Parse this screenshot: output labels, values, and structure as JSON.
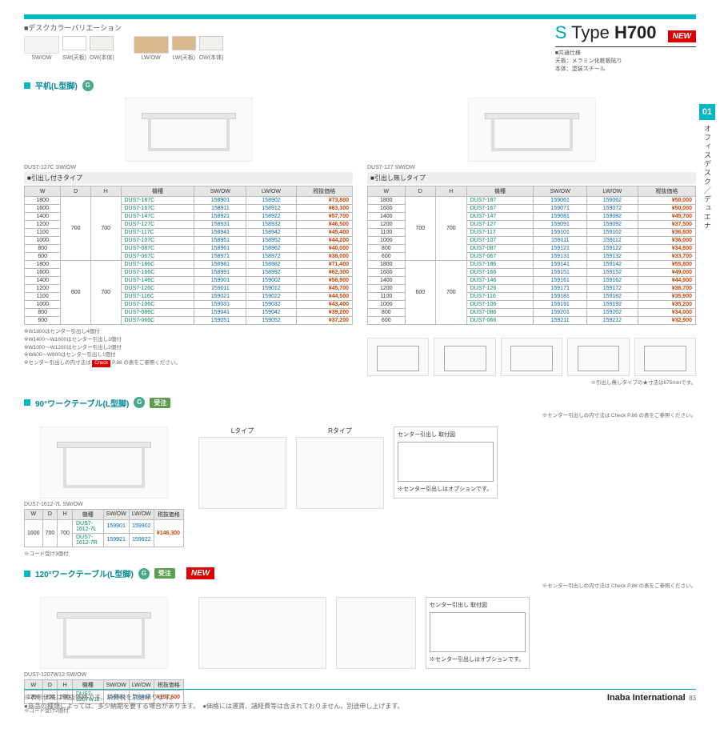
{
  "title": {
    "prefix": "S",
    "type": "Type",
    "model": "H700",
    "new": "NEW"
  },
  "colorvar_title": "■デスクカラーバリエーション",
  "swatch_labels": [
    "SW/OW",
    "SW(天板)",
    "OW(本体)",
    "LW/OW",
    "LW(天板)",
    "OW(本体)"
  ],
  "spec_common": {
    "head": "■共通仕様",
    "l1": "天板：メラミン化粧板貼り",
    "l2": "本体：塗装スチール"
  },
  "sidetab": {
    "num": "01",
    "text": "オフィスデスク／デュエナ"
  },
  "sec1": {
    "title": "平机(L型脚)"
  },
  "t1": {
    "model": "DUS7-127C SW/OW",
    "subhead": "■引出し付きタイプ",
    "headers": [
      "W",
      "D",
      "H",
      "機種",
      "SW/OW",
      "LW/OW",
      "税抜価格"
    ],
    "d": "700",
    "h": "700",
    "rows": [
      [
        "1800",
        "DUS7-187C",
        "158901",
        "158902",
        "¥73,800"
      ],
      [
        "1600",
        "DUS7-167C",
        "158911",
        "158912",
        "¥63,300"
      ],
      [
        "1400",
        "DUS7-147C",
        "158921",
        "158922",
        "¥57,700"
      ],
      [
        "1200",
        "DUS7-127C",
        "158931",
        "158932",
        "¥46,500"
      ],
      [
        "1100",
        "DUS7-117C",
        "158941",
        "158942",
        "¥45,400"
      ],
      [
        "1000",
        "DUS7-107C",
        "158951",
        "158952",
        "¥44,200"
      ],
      [
        "800",
        "DUS7-087C",
        "158961",
        "158962",
        "¥40,000"
      ],
      [
        "600",
        "DUS7-067C",
        "158971",
        "158972",
        "¥38,000"
      ]
    ],
    "d2": "600",
    "rows2": [
      [
        "1800",
        "DUS7-186C",
        "158981",
        "158982",
        "¥71,400"
      ],
      [
        "1600",
        "DUS7-166C",
        "158991",
        "158992",
        "¥62,300"
      ],
      [
        "1400",
        "DUS7-146C",
        "159001",
        "159002",
        "¥56,900"
      ],
      [
        "1200",
        "DUS7-126C",
        "159011",
        "159012",
        "¥45,700"
      ],
      [
        "1100",
        "DUS7-116C",
        "159021",
        "159022",
        "¥44,500"
      ],
      [
        "1000",
        "DUS7-106C",
        "159031",
        "159032",
        "¥43,400"
      ],
      [
        "800",
        "DUS7-086C",
        "159041",
        "159042",
        "¥39,200"
      ],
      [
        "600",
        "DUS7-066C",
        "159051",
        "159052",
        "¥37,200"
      ]
    ]
  },
  "t2": {
    "model": "DUS7-127 SW/OW",
    "subhead": "■引出し無しタイプ",
    "d": "700",
    "h": "700",
    "rows": [
      [
        "1800",
        "DUS7-187",
        "159061",
        "159062",
        "¥58,000"
      ],
      [
        "1600",
        "DUS7-167",
        "159071",
        "159072",
        "¥50,000"
      ],
      [
        "1400",
        "DUS7-147",
        "159081",
        "159082",
        "¥45,700"
      ],
      [
        "1200",
        "DUS7-127",
        "159091",
        "159092",
        "¥37,500"
      ],
      [
        "1100",
        "DUS7-117",
        "159101",
        "159102",
        "¥36,800"
      ],
      [
        "1000",
        "DUS7-107",
        "159111",
        "159112",
        "¥36,000"
      ],
      [
        "800",
        "DUS7-087",
        "159121",
        "159122",
        "¥34,800"
      ],
      [
        "600",
        "DUS7-067",
        "159131",
        "159132",
        "¥33,700"
      ]
    ],
    "d2": "600",
    "rows2": [
      [
        "1800",
        "DUS7-186",
        "159141",
        "159142",
        "¥55,800"
      ],
      [
        "1600",
        "DUS7-166",
        "159151",
        "159152",
        "¥49,000"
      ],
      [
        "1400",
        "DUS7-146",
        "159161",
        "159162",
        "¥44,900"
      ],
      [
        "1200",
        "DUS7-126",
        "159171",
        "159172",
        "¥36,700"
      ],
      [
        "1100",
        "DUS7-116",
        "159181",
        "159182",
        "¥35,900"
      ],
      [
        "1000",
        "DUS7-106",
        "159191",
        "159192",
        "¥35,200"
      ],
      [
        "800",
        "DUS7-086",
        "159201",
        "159202",
        "¥34,000"
      ],
      [
        "600",
        "DUS7-066",
        "159211",
        "159212",
        "¥32,900"
      ]
    ]
  },
  "notes1": [
    "※W1800はセンター引出し4個付",
    "※W1400～W1600はセンター引出し3個付",
    "※W1000～W1200はセンター引出し2個付",
    "※W600～W800はセンター引出し1個付",
    "※センター引出しの内寸法は Check P.86 の表をご参照ください。"
  ],
  "note_star": "※引出し無しタイプの★寸法は675mmです。",
  "sec2": {
    "title": "90°ワークテーブル(L型脚)",
    "juchu": "受注"
  },
  "t3": {
    "model": "DUS7-1612-7L SW/OW",
    "w": "1600",
    "d": "700",
    "h": "700",
    "rows": [
      [
        "DUS7-1612-7L",
        "159901",
        "159902",
        "¥146,300"
      ],
      [
        "DUS7-1612-7R",
        "159921",
        "159922",
        ""
      ]
    ],
    "note": "※コード受け3個付"
  },
  "diag2": {
    "l": "Lタイプ",
    "r": "Rタイプ",
    "opt_title": "センター引出し\n取付図",
    "opt_note": "※センター引出しはオプションです。",
    "ref": "※センター引出しの内寸法は Check P.86 の表をご参照ください。"
  },
  "sec3": {
    "title": "120°ワークテーブル(L型脚)",
    "juchu": "受注",
    "new": "NEW"
  },
  "t4": {
    "model": "DUS7-1207W12 SW/OW",
    "w": "1200",
    "d": "700",
    "h": "700",
    "rows": [
      [
        "DUS7-1207W12",
        "156481",
        "156482",
        "¥157,600"
      ]
    ],
    "note": "※コード受け2個付"
  },
  "footer": {
    "l1": "※表示価格は税抜価格です。消費税を別途承ります。",
    "l2": "●商品の種類によっては、多少納期を要する場合があります。　●価格には運賃、諸経費等は含まれておりません。別途申し上げます。",
    "brand": "Inaba International",
    "page": "83"
  },
  "colors": {
    "accent": "#00b8c4",
    "green": "#008a50",
    "link": "#0066aa",
    "price": "#c40",
    "red": "#d00"
  }
}
